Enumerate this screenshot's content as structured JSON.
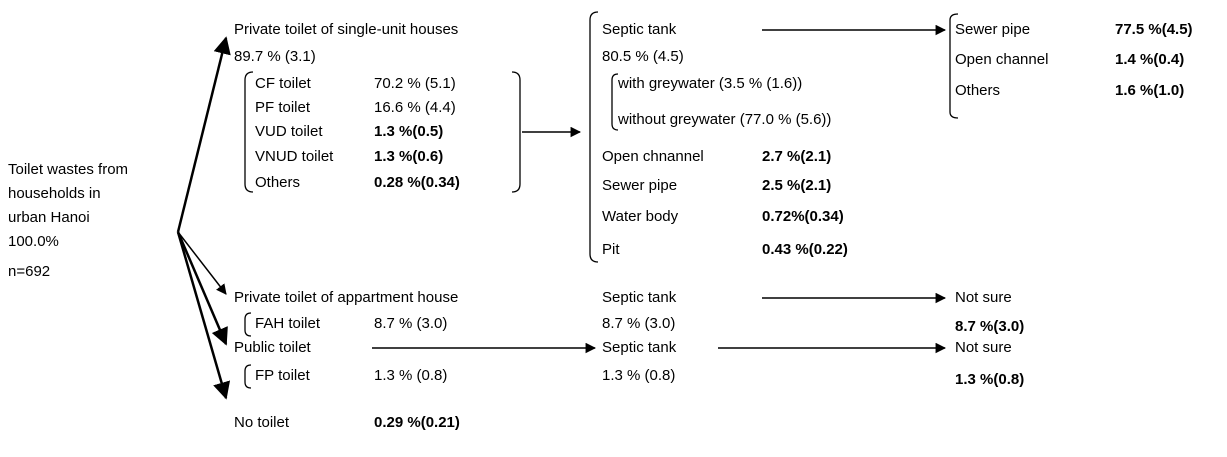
{
  "source": {
    "label": [
      "Toilet wastes from",
      "households in",
      "urban Hanoi"
    ],
    "share": "100.0%",
    "n": "n=692"
  },
  "single_unit": {
    "label": "Private toilet of single-unit houses",
    "share": "89.7 % (3.1)",
    "toilets": [
      {
        "name": "CF toilet",
        "share": "70.2 % (5.1)"
      },
      {
        "name": "PF toilet",
        "share": "16.6 % (4.4)"
      },
      {
        "name": "VUD toilet",
        "share": "1.3 %(0.5)"
      },
      {
        "name": "VNUD toilet",
        "share": "1.3 %(0.6)"
      },
      {
        "name": "Others",
        "share": "0.28 %(0.34)"
      }
    ]
  },
  "single_destination": {
    "label": "Septic tank",
    "share": "80.5 % (4.5)",
    "sub": [
      "with greywater (3.5 % (1.6))",
      "without greywater (77.0 % (5.6))"
    ],
    "others": [
      {
        "name": "Open chnannel",
        "share": "2.7 %(2.1)"
      },
      {
        "name": "Sewer pipe",
        "share": "2.5 %(2.1)"
      },
      {
        "name": "Water body",
        "share": "0.72%(0.34)"
      },
      {
        "name": "Pit",
        "share": "0.43 %(0.22)"
      }
    ]
  },
  "septic_outlets": [
    {
      "name": "Sewer pipe",
      "share": "77.5 %(4.5)"
    },
    {
      "name": "Open channel",
      "share": "1.4 %(0.4)"
    },
    {
      "name": "Others",
      "share": "1.6 %(1.0)"
    }
  ],
  "apartment": {
    "label": "Private toilet of appartment house",
    "toilet": {
      "name": "FAH toilet",
      "share": "8.7 % (3.0)"
    },
    "septic": {
      "label": "Septic tank",
      "share": "8.7 % (3.0)"
    },
    "outlet": {
      "label": "Not sure",
      "share": "8.7 %(3.0)"
    }
  },
  "public": {
    "label": "Public toilet",
    "toilet": {
      "name": "FP toilet",
      "share": "1.3 % (0.8)"
    },
    "septic": {
      "label": "Septic tank",
      "share": "1.3 % (0.8)"
    },
    "outlet": {
      "label": "Not sure",
      "share": "1.3 %(0.8)"
    }
  },
  "no_toilet": {
    "label": "No toilet",
    "share": "0.29 %(0.21)"
  }
}
